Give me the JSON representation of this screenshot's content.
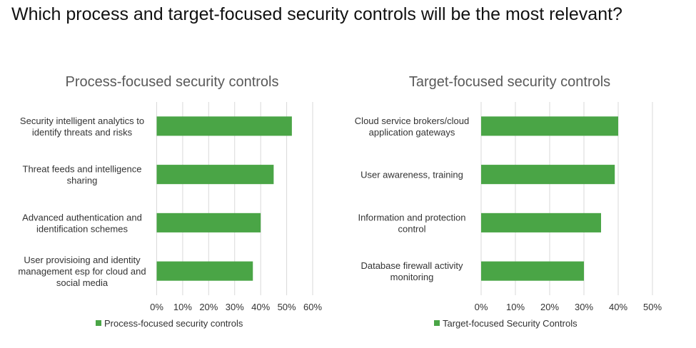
{
  "title": "Which process and target-focused security controls will be the most relevant?",
  "colors": {
    "bar": "#4aa546",
    "grid": "#d9d9d9",
    "text": "#333333",
    "chart_title": "#595959"
  },
  "chart_data": [
    {
      "type": "bar",
      "orientation": "horizontal",
      "title": "Process-focused security controls",
      "categories": [
        [
          "Security intelligent analytics to",
          "identify threats and risks"
        ],
        [
          "Threat feeds and intelligence",
          "sharing"
        ],
        [
          "Advanced authentication and",
          "identification schemes"
        ],
        [
          "User provisioing and identity",
          "management esp for cloud and",
          "social media"
        ]
      ],
      "series": [
        {
          "name": "Process-focused security controls",
          "values": [
            52,
            45,
            40,
            37
          ]
        }
      ],
      "ticks": [
        "0%",
        "10%",
        "20%",
        "30%",
        "40%",
        "50%",
        "60%"
      ],
      "xlim": [
        0,
        60
      ],
      "legend": "bottom"
    },
    {
      "type": "bar",
      "orientation": "horizontal",
      "title": "Target-focused security controls",
      "categories": [
        [
          "Cloud service brokers/cloud",
          "application gateways"
        ],
        [
          "User awareness, training"
        ],
        [
          "Information and protection",
          "control"
        ],
        [
          "Database firewall activity",
          "monitoring"
        ]
      ],
      "series": [
        {
          "name": "Target-focused Security Controls",
          "values": [
            40,
            39,
            35,
            30
          ]
        }
      ],
      "ticks": [
        "0%",
        "10%",
        "20%",
        "30%",
        "40%",
        "50%"
      ],
      "xlim": [
        0,
        50
      ],
      "legend": "bottom"
    }
  ]
}
